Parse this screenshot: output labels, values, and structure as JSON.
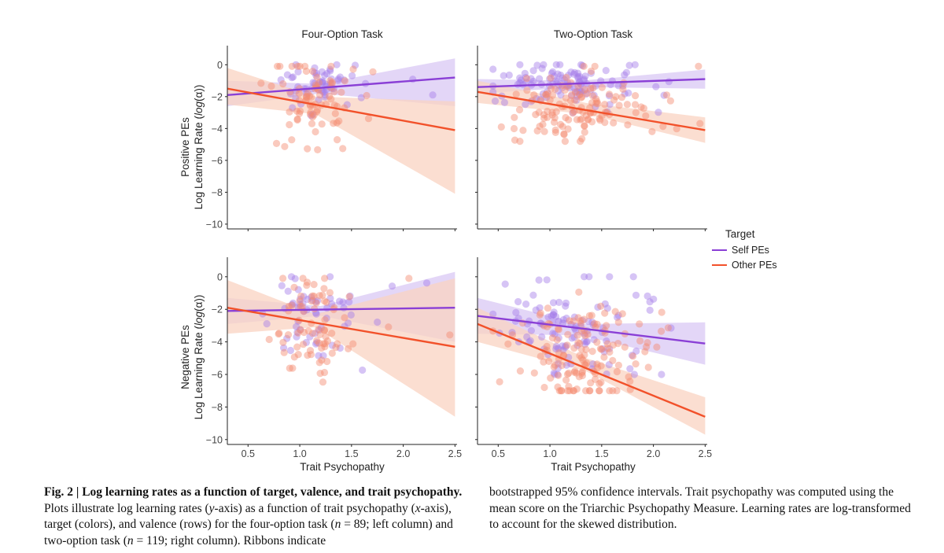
{
  "colors": {
    "self": "#8A3FD6",
    "other": "#F2512A",
    "self_point": "#A57CE8",
    "other_point": "#F48A6E",
    "self_ribbon": "#D9C8F4",
    "other_ribbon": "#FAD3C2"
  },
  "figure": {
    "legend": {
      "title": "Target",
      "items": [
        "Self PEs",
        "Other PEs"
      ]
    },
    "x_axis_title": "Trait Psychopathy",
    "x_ticks": [
      "0.5",
      "1.0",
      "1.5",
      "2.0",
      "2.5"
    ],
    "y_ticks": [
      "0",
      "−2",
      "−4",
      "−6",
      "−8",
      "−10"
    ],
    "row_labels": [
      {
        "line1": "Positive PEs",
        "line2_text": "Log Learning Rate (",
        "line2_italic": "log",
        "line2_end": "(α))"
      },
      {
        "line1": "Negative PEs",
        "line2_text": "Log Learning Rate (",
        "line2_italic": "log",
        "line2_end": "(α))"
      }
    ]
  },
  "chart_data": [
    {
      "type": "scatter",
      "title": "Four-Option Task",
      "row": "Positive PEs",
      "xlabel": "",
      "ylabel": "Log Learning Rate (log(α))",
      "xlim": [
        0.3,
        2.52
      ],
      "ylim": [
        -10.3,
        1.2
      ],
      "series": [
        {
          "name": "Self PEs",
          "fit": {
            "x": [
              0.3,
              2.5
            ],
            "y": [
              -1.9,
              -0.8
            ]
          },
          "ribbon": {
            "x": [
              0.3,
              1.2,
              2.5
            ],
            "lower": [
              -2.6,
              -1.8,
              -2.6
            ],
            "upper": [
              -1.0,
              -1.2,
              0.4
            ]
          }
        },
        {
          "name": "Other PEs",
          "fit": {
            "x": [
              0.3,
              2.5
            ],
            "y": [
              -1.5,
              -4.1
            ]
          },
          "ribbon": {
            "x": [
              0.3,
              1.15,
              2.5
            ],
            "lower": [
              -2.5,
              -3.1,
              -8.1
            ],
            "upper": [
              -0.2,
              -2.0,
              -2.3
            ]
          }
        }
      ]
    },
    {
      "type": "scatter",
      "title": "Two-Option Task",
      "row": "Positive PEs",
      "xlabel": "",
      "ylabel": "",
      "xlim": [
        0.3,
        2.52
      ],
      "ylim": [
        -10.3,
        1.2
      ],
      "series": [
        {
          "name": "Self PEs",
          "fit": {
            "x": [
              0.3,
              2.5
            ],
            "y": [
              -1.4,
              -0.9
            ]
          },
          "ribbon": {
            "x": [
              0.3,
              1.3,
              2.5
            ],
            "lower": [
              -1.8,
              -1.4,
              -1.5
            ],
            "upper": [
              -0.9,
              -1.0,
              -0.3
            ]
          }
        },
        {
          "name": "Other PEs",
          "fit": {
            "x": [
              0.3,
              2.5
            ],
            "y": [
              -1.7,
              -4.1
            ]
          },
          "ribbon": {
            "x": [
              0.3,
              1.35,
              2.5
            ],
            "lower": [
              -2.4,
              -3.1,
              -4.9
            ],
            "upper": [
              -1.0,
              -2.4,
              -3.3
            ]
          }
        }
      ]
    },
    {
      "type": "scatter",
      "title": "",
      "row": "Negative PEs",
      "xlabel": "Trait Psychopathy",
      "ylabel": "Log Learning Rate (log(α))",
      "xlim": [
        0.3,
        2.52
      ],
      "ylim": [
        -10.3,
        1.2
      ],
      "series": [
        {
          "name": "Self PEs",
          "fit": {
            "x": [
              0.3,
              2.5
            ],
            "y": [
              -2.1,
              -1.9
            ]
          },
          "ribbon": {
            "x": [
              0.3,
              1.2,
              2.5
            ],
            "lower": [
              -2.9,
              -2.4,
              -4.0
            ],
            "upper": [
              -1.3,
              -1.8,
              0.3
            ]
          }
        },
        {
          "name": "Other PEs",
          "fit": {
            "x": [
              0.3,
              2.5
            ],
            "y": [
              -1.9,
              -4.3
            ]
          },
          "ribbon": {
            "x": [
              0.3,
              1.15,
              2.5
            ],
            "lower": [
              -3.5,
              -3.1,
              -8.6
            ],
            "upper": [
              -0.2,
              -2.3,
              -0.1
            ]
          }
        }
      ]
    },
    {
      "type": "scatter",
      "title": "",
      "row": "Negative PEs",
      "xlabel": "Trait Psychopathy",
      "ylabel": "",
      "xlim": [
        0.3,
        2.52
      ],
      "ylim": [
        -10.3,
        1.2
      ],
      "series": [
        {
          "name": "Self PEs",
          "fit": {
            "x": [
              0.3,
              2.5
            ],
            "y": [
              -2.4,
              -4.1
            ]
          },
          "ribbon": {
            "x": [
              0.3,
              1.3,
              2.5
            ],
            "lower": [
              -3.5,
              -3.6,
              -5.4
            ],
            "upper": [
              -1.3,
              -2.9,
              -2.8
            ]
          }
        },
        {
          "name": "Other PEs",
          "fit": {
            "x": [
              0.3,
              2.5
            ],
            "y": [
              -2.9,
              -8.6
            ]
          },
          "ribbon": {
            "x": [
              0.3,
              1.35,
              2.5
            ],
            "lower": [
              -4.0,
              -5.8,
              -9.7
            ],
            "upper": [
              -1.9,
              -5.0,
              -7.4
            ]
          }
        }
      ]
    }
  ],
  "caption": {
    "fig_label": "Fig. 2 | Log learning rates as a function of target, valence, and trait psycho­pathy.",
    "p1": " Plots illustrate log learning rates (",
    "y_axis": "y",
    "p2": "-axis) as a function of trait psychopathy (",
    "x_axis": "x",
    "p3": "-axis), target (colors), and valence (rows) for the four-option task (",
    "n_var": "n",
    "n1": " = 89; left column) and two-option task (",
    "n2": " = 119; right column). Ribbons indicate",
    "right": "bootstrapped 95% confidence intervals. Trait psychopathy was computed using the mean score on the Triarchic Psychopathy Measure. Learning rates are log-transformed to account for the skewed distribution."
  }
}
